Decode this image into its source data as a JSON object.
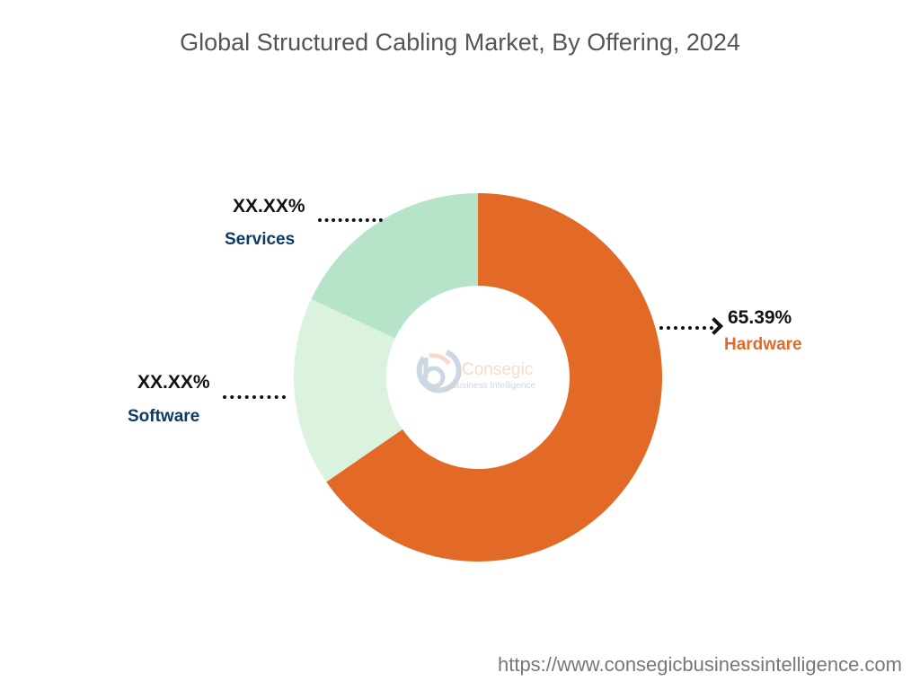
{
  "chart_data": {
    "type": "pie",
    "style": "donut",
    "title": "Global Structured Cabling Market, By Offering, 2024",
    "slices": [
      {
        "name": "Hardware",
        "label": "65.39%",
        "value": 65.39,
        "color": "#E36A26",
        "label_color": "#E36A26"
      },
      {
        "name": "Software",
        "label": "XX.XX%",
        "value": 16.6,
        "color": "#DAF2DE",
        "label_color": "#0E3A63"
      },
      {
        "name": "Services",
        "label": "XX.XX%",
        "value": 18.01,
        "color": "#B6E4C8",
        "label_color": "#0E3A63"
      }
    ],
    "start": "top",
    "direction": "clockwise"
  },
  "watermark": {
    "brand": "Consegic",
    "tagline": "Business Intelligence"
  },
  "footer": {
    "url": "https://www.consegicbusinessintelligence.com"
  }
}
